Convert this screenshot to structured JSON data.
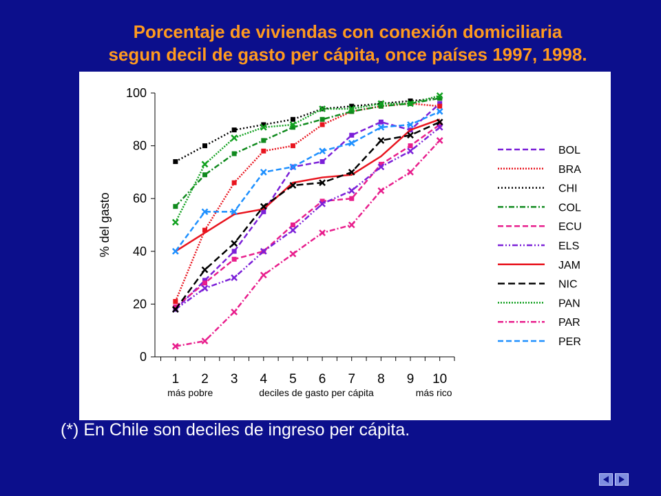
{
  "title_line1": "Porcentaje de viviendas con conexión domiciliaria",
  "title_line2": "segun decil de gasto per cápita, once países 1997, 1998.",
  "footnote": "(*) En Chile son deciles de ingreso per cápita.",
  "nav": {
    "prev_icon": "triangle-left-icon",
    "next_icon": "triangle-right-icon",
    "color": "#7f8ee0"
  },
  "chart_data": {
    "type": "line",
    "title": "",
    "xlabel": "deciles de gasto per cápita",
    "x_sublabel_left": "más pobre",
    "x_sublabel_right": "más rico",
    "ylabel": "% del gasto",
    "x": [
      1,
      2,
      3,
      4,
      5,
      6,
      7,
      8,
      9,
      10
    ],
    "ylim": [
      0,
      100
    ],
    "yticks": [
      0,
      20,
      40,
      60,
      80,
      100
    ],
    "grid": false,
    "legend_position": "right",
    "series": [
      {
        "name": "BOL",
        "color": "#7b20d8",
        "dash": "8,4",
        "marker": "square",
        "values": [
          18,
          29,
          40,
          55,
          72,
          74,
          84,
          89,
          86,
          96
        ]
      },
      {
        "name": "BRA",
        "color": "#e8141e",
        "dash": "2,2",
        "marker": "square",
        "values": [
          21,
          48,
          66,
          78,
          80,
          88,
          93,
          95,
          96,
          95
        ]
      },
      {
        "name": "CHI",
        "color": "#000000",
        "dash": "2,3",
        "marker": "square",
        "values": [
          74,
          80,
          86,
          88,
          90,
          94,
          95,
          96,
          97,
          98
        ]
      },
      {
        "name": "COL",
        "color": "#108a1e",
        "dash": "8,3,2,3",
        "marker": "square",
        "values": [
          57,
          69,
          77,
          82,
          87,
          90,
          93,
          95,
          96,
          98
        ]
      },
      {
        "name": "ECU",
        "color": "#e81e8c",
        "dash": "8,4",
        "marker": "square",
        "values": [
          19,
          28,
          37,
          40,
          50,
          59,
          60,
          73,
          80,
          88
        ]
      },
      {
        "name": "ELS",
        "color": "#7b20d8",
        "dash": "8,3,2,3,2,3",
        "marker": "x",
        "values": [
          18,
          26,
          30,
          40,
          48,
          58,
          63,
          72,
          78,
          87
        ]
      },
      {
        "name": "JAM",
        "color": "#e8141e",
        "dash": "",
        "marker": "none",
        "values": [
          40,
          47,
          54,
          56,
          66,
          68,
          69,
          76,
          86,
          90
        ]
      },
      {
        "name": "NIC",
        "color": "#000000",
        "dash": "10,5",
        "marker": "x",
        "values": [
          18,
          33,
          43,
          57,
          65,
          66,
          70,
          82,
          84,
          89
        ]
      },
      {
        "name": "PAN",
        "color": "#10a01e",
        "dash": "2,2",
        "marker": "x",
        "values": [
          51,
          73,
          83,
          87,
          88,
          94,
          94,
          96,
          96,
          99
        ]
      },
      {
        "name": "PAR",
        "color": "#e81e8c",
        "dash": "8,3,2,3",
        "marker": "x",
        "values": [
          4,
          6,
          17,
          31,
          39,
          47,
          50,
          63,
          70,
          82
        ]
      },
      {
        "name": "PER",
        "color": "#1e90ff",
        "dash": "8,4",
        "marker": "x",
        "values": [
          40,
          55,
          55,
          70,
          72,
          78,
          81,
          87,
          88,
          93
        ]
      }
    ]
  }
}
